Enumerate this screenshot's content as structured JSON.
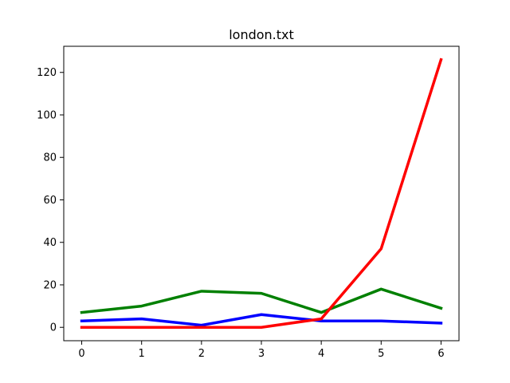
{
  "chart_data": {
    "type": "line",
    "title": "london.txt",
    "xlabel": "",
    "ylabel": "",
    "x": [
      0,
      1,
      2,
      3,
      4,
      5,
      6
    ],
    "xlim": [
      -0.3,
      6.3
    ],
    "ylim": [
      -6.3,
      132.3
    ],
    "xticks": [
      0,
      1,
      2,
      3,
      4,
      5,
      6
    ],
    "yticks": [
      0,
      20,
      40,
      60,
      80,
      100,
      120
    ],
    "grid": false,
    "legend": "none",
    "series": [
      {
        "color": "#008000",
        "values": [
          7,
          10,
          17,
          16,
          7,
          18,
          9
        ]
      },
      {
        "color": "#0000ff",
        "values": [
          3,
          4,
          1,
          6,
          3,
          3,
          2
        ]
      },
      {
        "color": "#ff0000",
        "values": [
          0,
          0,
          0,
          0,
          4,
          37,
          126
        ]
      }
    ]
  }
}
